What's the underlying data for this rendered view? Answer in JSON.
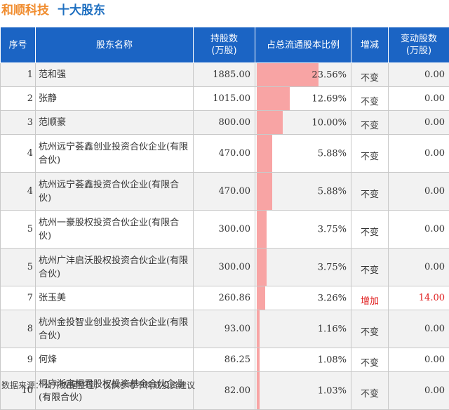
{
  "title": {
    "company": "和顺科技",
    "subtitle": "十大股东"
  },
  "columns": [
    "序号",
    "股东名称",
    "持股数\n(万股)",
    "占总流通股本比例",
    "增减",
    "变动股数\n(万股)"
  ],
  "rows": [
    {
      "rank": "1",
      "name": "范和强",
      "shares": "1885.00",
      "ratio": "23.56%",
      "ratio_value": 23.56,
      "change": "不变",
      "change_shares": "0.00"
    },
    {
      "rank": "2",
      "name": "张静",
      "shares": "1015.00",
      "ratio": "12.69%",
      "ratio_value": 12.69,
      "change": "不变",
      "change_shares": "0.00"
    },
    {
      "rank": "3",
      "name": "范顺豪",
      "shares": "800.00",
      "ratio": "10.00%",
      "ratio_value": 10.0,
      "change": "不变",
      "change_shares": "0.00"
    },
    {
      "rank": "4",
      "name": "杭州远宁荟鑫创业投资合伙企业(有限合伙)",
      "shares": "470.00",
      "ratio": "5.88%",
      "ratio_value": 5.88,
      "change": "不变",
      "change_shares": "0.00"
    },
    {
      "rank": "4",
      "name": "杭州远宁荟鑫投资合伙企业(有限合伙)",
      "shares": "470.00",
      "ratio": "5.88%",
      "ratio_value": 5.88,
      "change": "不变",
      "change_shares": "0.00"
    },
    {
      "rank": "5",
      "name": "杭州一豪股权投资合伙企业(有限合伙)",
      "shares": "300.00",
      "ratio": "3.75%",
      "ratio_value": 3.75,
      "change": "不变",
      "change_shares": "0.00"
    },
    {
      "rank": "5",
      "name": "杭州广沣启沃股权投资合伙企业(有限合伙)",
      "shares": "300.00",
      "ratio": "3.75%",
      "ratio_value": 3.75,
      "change": "不变",
      "change_shares": "0.00"
    },
    {
      "rank": "7",
      "name": "张玉美",
      "shares": "260.86",
      "ratio": "3.26%",
      "ratio_value": 3.26,
      "change": "增加",
      "change_shares": "14.00"
    },
    {
      "rank": "8",
      "name": "杭州金投智业创业投资合伙企业(有限合伙)",
      "shares": "93.00",
      "ratio": "1.16%",
      "ratio_value": 1.16,
      "change": "不变",
      "change_shares": "0.00"
    },
    {
      "rank": "9",
      "name": "何烽",
      "shares": "86.25",
      "ratio": "1.08%",
      "ratio_value": 1.08,
      "change": "不变",
      "change_shares": "0.00"
    },
    {
      "rank": "10",
      "name": "桐庐浙富桐君股权投资基金合伙企业(有限合伙)",
      "shares": "82.00",
      "ratio": "1.03%",
      "ratio_value": 1.03,
      "change": "不变",
      "change_shares": "0.00"
    }
  ],
  "colors": {
    "header_bg": "#1b64c4",
    "bar": "#f8a4a4",
    "increase": "#e02020",
    "company_title": "#f08c2e",
    "subtitle": "#1e6fc0"
  },
  "footer": "数据来源：公开数据整理，仅供参考不构成投资建议"
}
